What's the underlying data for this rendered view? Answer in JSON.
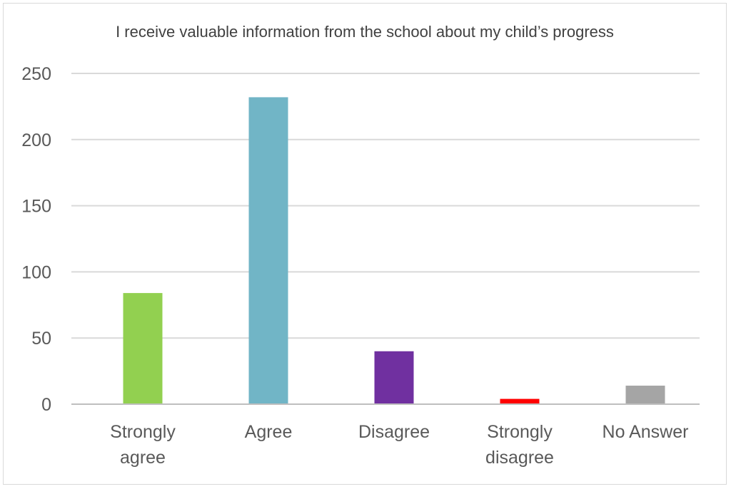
{
  "chart_data": {
    "type": "bar",
    "title": "I receive valuable information from the school about my child’s progress",
    "categories": [
      [
        "Strongly",
        "agree"
      ],
      [
        "Agree"
      ],
      [
        "Disagree"
      ],
      [
        "Strongly",
        "disagree"
      ],
      [
        "No Answer"
      ]
    ],
    "values": [
      84,
      232,
      40,
      4,
      14
    ],
    "colors": [
      "#92d050",
      "#71b5c6",
      "#7030a0",
      "#ff0000",
      "#a5a5a5"
    ],
    "ylim": [
      0,
      250
    ],
    "yticks": [
      0,
      50,
      100,
      150,
      200,
      250
    ],
    "grid": true,
    "gridColor": "#d9d9d9",
    "axisColor": "#bfbfbf",
    "legend": "none"
  }
}
